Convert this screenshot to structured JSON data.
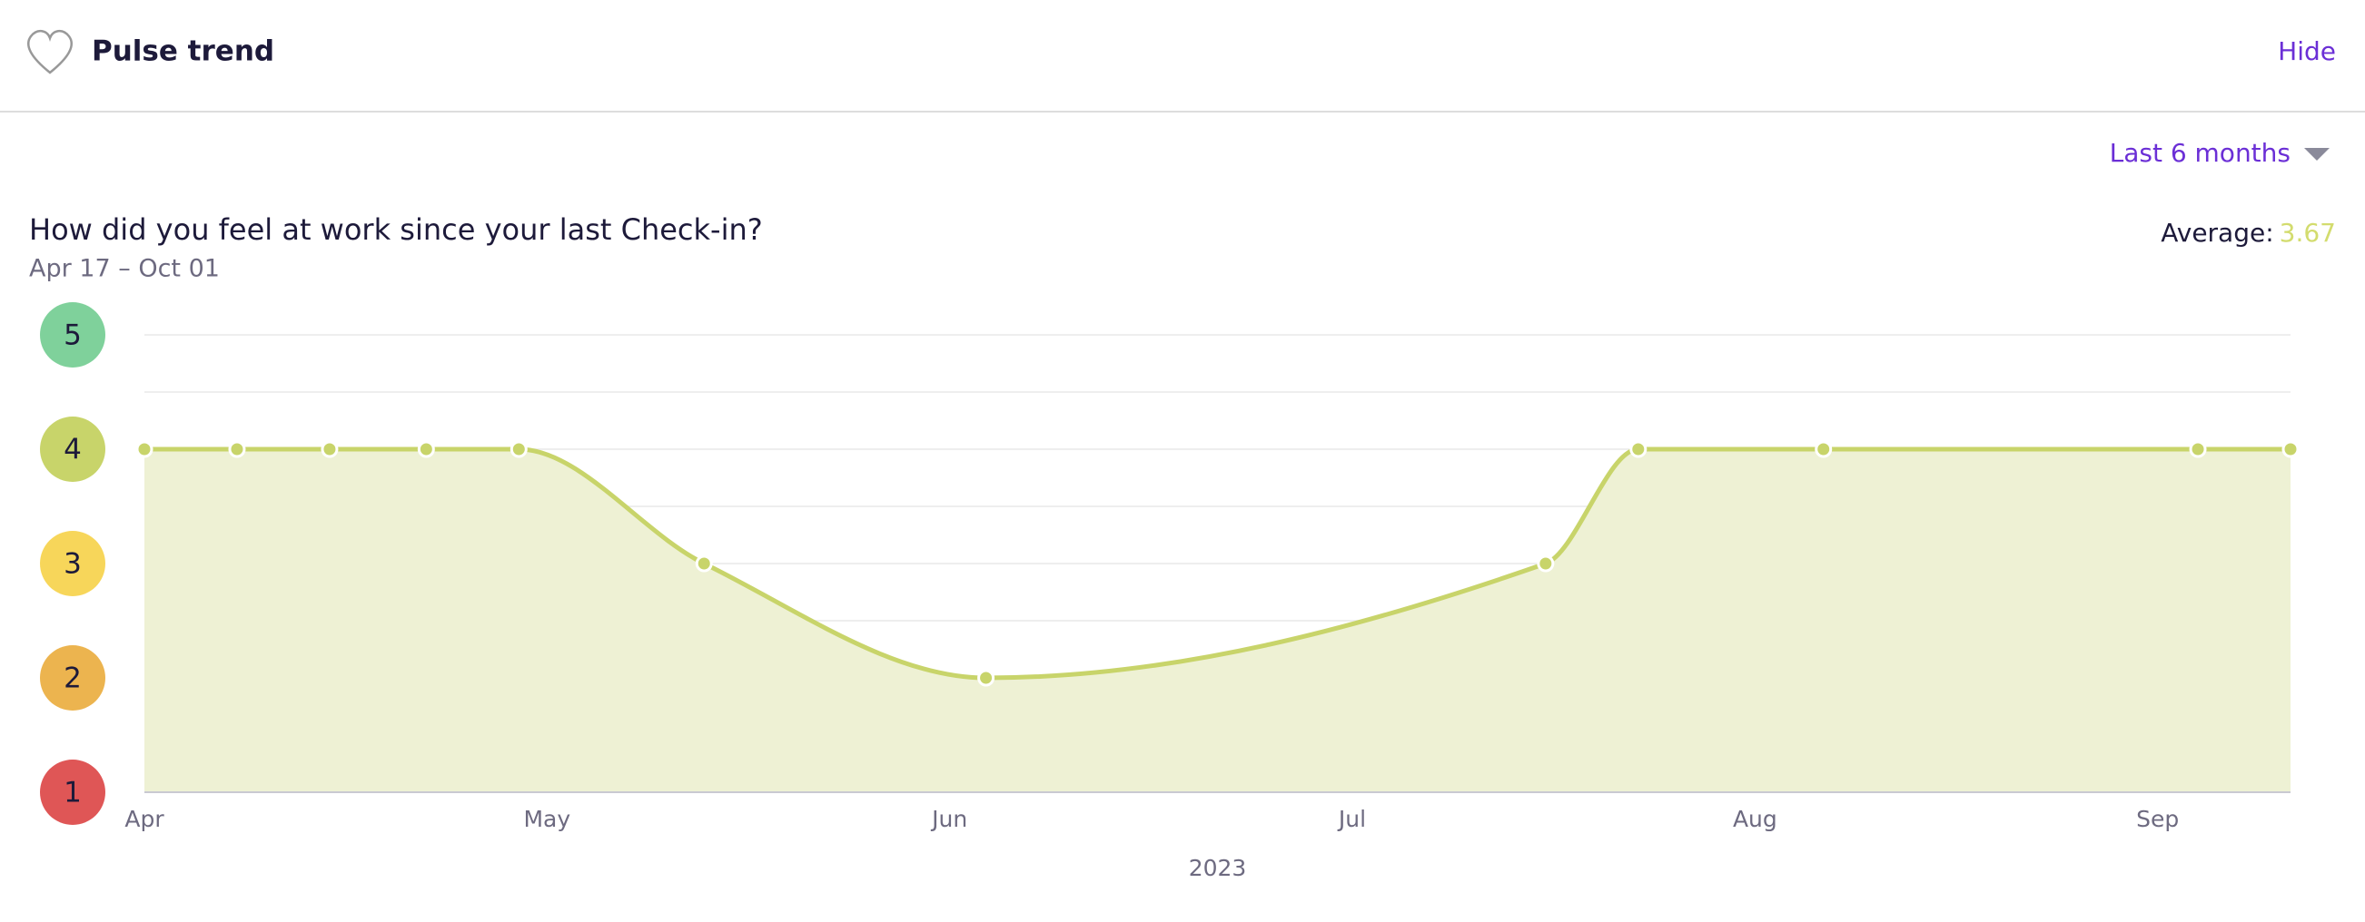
{
  "header": {
    "title": "Pulse trend",
    "action": "Hide"
  },
  "filter": "Last 6 months",
  "chart_data": {
    "type": "line",
    "title": "How did you feel at work since your last Check-in?",
    "subtitle": "Apr 17 – Oct 01",
    "average": {
      "label": "Average:",
      "value": 3.67,
      "color": "#d3dc6e"
    },
    "x": [
      4.0,
      4.23,
      4.46,
      4.7,
      4.93,
      5.39,
      6.09,
      7.48,
      7.71,
      8.17,
      9.1,
      9.33
    ],
    "values": [
      4,
      4,
      4,
      4,
      4,
      3,
      2,
      3,
      4,
      4,
      4,
      4
    ],
    "color": "#c8d46a",
    "area_color": "#eef1d4",
    "xlim": [
      4.0,
      9.33
    ],
    "xticks": [
      {
        "value": 4,
        "label": "Apr"
      },
      {
        "value": 5,
        "label": "May"
      },
      {
        "value": 6,
        "label": "Jun"
      },
      {
        "value": 7,
        "label": "Jul"
      },
      {
        "value": 8,
        "label": "Aug"
      },
      {
        "value": 9,
        "label": "Sep"
      }
    ],
    "x_label": "2023",
    "ylim": [
      1,
      5
    ],
    "yticks": [
      1,
      2,
      3,
      4,
      5
    ],
    "ytick_colors": [
      "#df5656",
      "#ecb44f",
      "#f7d65a",
      "#c8d46a",
      "#7fd19b"
    ],
    "grid": true,
    "minor_grid": true,
    "smooth": true
  }
}
